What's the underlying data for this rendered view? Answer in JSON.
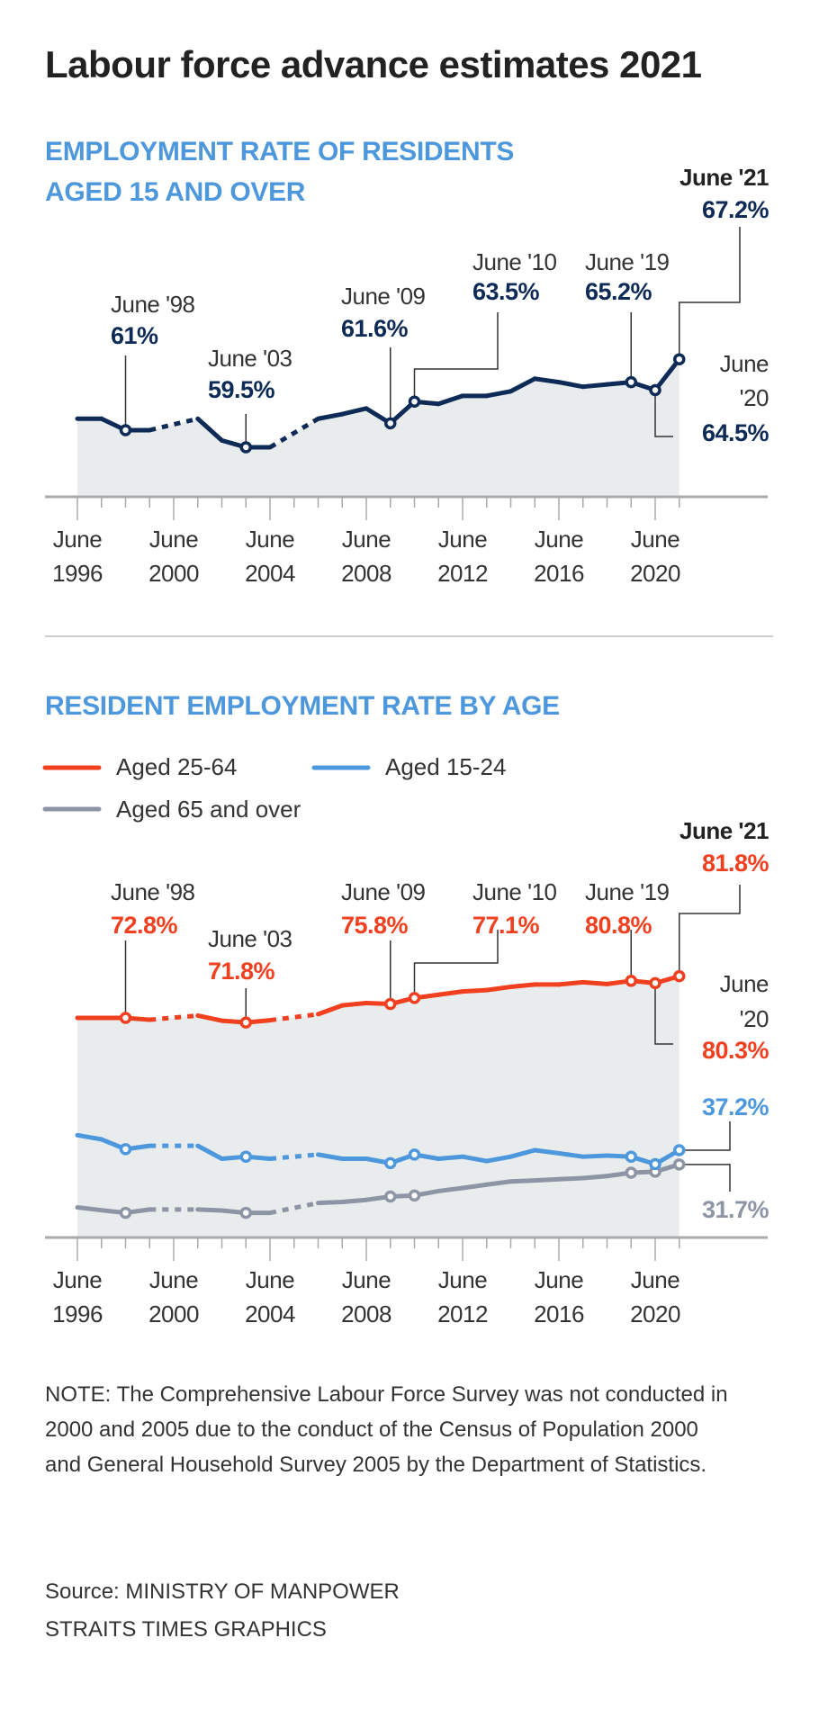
{
  "title": "Labour force advance estimates 2021",
  "colors": {
    "navy": "#0e2a56",
    "red": "#f0401f",
    "blue": "#4d97dd",
    "gray": "#8d95a5",
    "fill": "#e9eced"
  },
  "chart_data": [
    {
      "type": "line",
      "title": "EMPLOYMENT RATE OF RESIDENTS AGED 15 AND OVER",
      "title_lines": [
        "EMPLOYMENT RATE OF RESIDENTS",
        "AGED 15 AND OVER"
      ],
      "x": [
        1996,
        1997,
        1998,
        1999,
        2000,
        2001,
        2002,
        2003,
        2004,
        2005,
        2006,
        2007,
        2008,
        2009,
        2010,
        2011,
        2012,
        2013,
        2014,
        2015,
        2016,
        2017,
        2018,
        2019,
        2020,
        2021
      ],
      "series": [
        {
          "name": "Employment rate (15 and over)",
          "color": "#0e2a56",
          "values": [
            62.0,
            62.0,
            61.0,
            61.0,
            null,
            62.0,
            60.1,
            59.5,
            59.5,
            null,
            62.0,
            62.4,
            62.9,
            61.6,
            63.5,
            63.3,
            64.0,
            64.0,
            64.4,
            65.5,
            65.2,
            64.8,
            65.0,
            65.2,
            64.5,
            67.2
          ]
        }
      ],
      "missing_years": [
        2000,
        2005
      ],
      "xtick_labels": [
        [
          "June",
          "1996"
        ],
        [
          "June",
          "2000"
        ],
        [
          "June",
          "2004"
        ],
        [
          "June",
          "2008"
        ],
        [
          "June",
          "2012"
        ],
        [
          "June",
          "2016"
        ],
        [
          "June",
          "2020"
        ]
      ],
      "xtick_years": [
        1996,
        2000,
        2004,
        2008,
        2012,
        2016,
        2020
      ],
      "annotations": [
        {
          "label": "June '98",
          "value": "61%"
        },
        {
          "label": "June '03",
          "value": "59.5%"
        },
        {
          "label": "June '09",
          "value": "61.6%"
        },
        {
          "label": "June '10",
          "value": "63.5%"
        },
        {
          "label": "June '19",
          "value": "65.2%"
        },
        {
          "label": "June '21",
          "value": "67.2%"
        },
        {
          "label_lines": [
            "June",
            "'20"
          ],
          "value": "64.5%"
        }
      ],
      "marker_years": [
        1998,
        2003,
        2009,
        2010,
        2019,
        2020,
        2021
      ],
      "ylabel": "",
      "xlabel": ""
    },
    {
      "type": "line",
      "title": "RESIDENT EMPLOYMENT RATE BY AGE",
      "x": [
        1996,
        1997,
        1998,
        1999,
        2000,
        2001,
        2002,
        2003,
        2004,
        2005,
        2006,
        2007,
        2008,
        2009,
        2010,
        2011,
        2012,
        2013,
        2014,
        2015,
        2016,
        2017,
        2018,
        2019,
        2020,
        2021
      ],
      "series": [
        {
          "name": "Aged 25-64",
          "color": "#f0401f",
          "values": [
            72.8,
            72.8,
            72.8,
            72.4,
            null,
            73.3,
            72.2,
            71.8,
            72.3,
            null,
            73.6,
            75.5,
            76.0,
            75.8,
            77.1,
            77.8,
            78.5,
            78.8,
            79.5,
            80.0,
            80.0,
            80.5,
            80.1,
            80.8,
            80.3,
            81.8
          ]
        },
        {
          "name": "Aged 15-24",
          "color": "#4d97dd",
          "values": [
            43.0,
            41.4,
            37.6,
            38.9,
            null,
            38.9,
            33.9,
            34.7,
            33.9,
            null,
            35.5,
            33.9,
            33.9,
            32.2,
            35.5,
            33.9,
            34.7,
            33.0,
            34.7,
            37.2,
            36.0,
            34.7,
            35.1,
            34.7,
            31.8,
            37.2
          ]
        },
        {
          "name": "Aged 65 and over",
          "color": "#8d95a5",
          "values": [
            15.1,
            14.0,
            13.0,
            14.3,
            null,
            14.3,
            13.9,
            13.0,
            13.0,
            null,
            16.8,
            17.2,
            18.0,
            19.3,
            19.7,
            21.4,
            22.6,
            23.9,
            25.1,
            25.5,
            26.0,
            26.4,
            27.2,
            28.5,
            28.9,
            31.7
          ]
        }
      ],
      "legend": [
        "Aged 25-64",
        "Aged 15-24",
        "Aged 65 and over"
      ],
      "legend_placement": "top-left",
      "missing_years": [
        2000,
        2005
      ],
      "xtick_labels": [
        [
          "June",
          "1996"
        ],
        [
          "June",
          "2000"
        ],
        [
          "June",
          "2004"
        ],
        [
          "June",
          "2008"
        ],
        [
          "June",
          "2012"
        ],
        [
          "June",
          "2016"
        ],
        [
          "June",
          "2020"
        ]
      ],
      "xtick_years": [
        1996,
        2000,
        2004,
        2008,
        2012,
        2016,
        2020
      ],
      "annotations": [
        {
          "label": "June '98",
          "value": "72.8%"
        },
        {
          "label": "June '03",
          "value": "71.8%"
        },
        {
          "label": "June '09",
          "value": "75.8%"
        },
        {
          "label": "June '10",
          "value": "77.1%"
        },
        {
          "label": "June '19",
          "value": "80.8%"
        },
        {
          "label": "June '21",
          "value": "81.8%"
        },
        {
          "label_lines": [
            "June",
            "'20"
          ],
          "value": "80.3%"
        },
        {
          "value": "37.2%"
        },
        {
          "value": "31.7%"
        }
      ],
      "marker_years": [
        1998,
        2003,
        2009,
        2010,
        2019,
        2020,
        2021
      ],
      "axis_break": true
    }
  ],
  "note": "NOTE: The Comprehensive Labour Force Survey was not conducted in 2000 and 2005 due to the conduct of the Census of Population 2000 and General Household Survey 2005 by the Department of Statistics.",
  "source_lines": [
    "Source: MINISTRY OF MANPOWER",
    "STRAITS TIMES GRAPHICS"
  ]
}
